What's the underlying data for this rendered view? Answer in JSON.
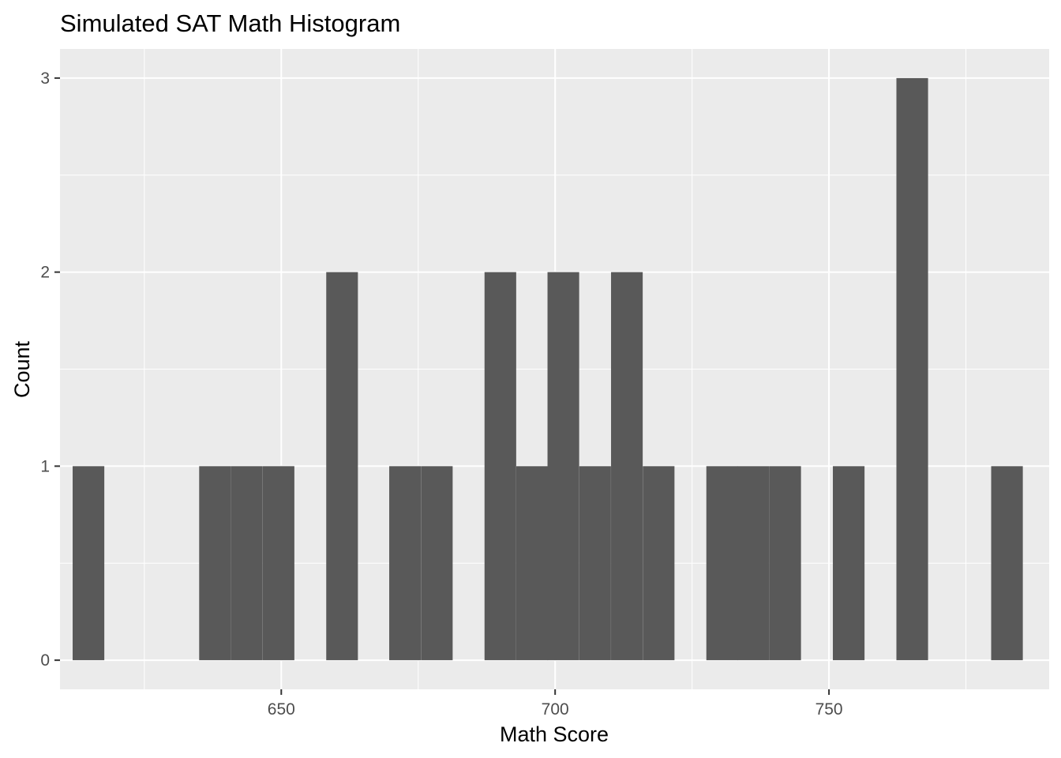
{
  "chart_data": {
    "type": "bar",
    "title": "Simulated SAT Math Histogram",
    "xlabel": "Math Score",
    "ylabel": "Count",
    "x_ticks": [
      650,
      700,
      750
    ],
    "y_ticks": [
      0,
      1,
      2,
      3
    ],
    "xlim": [
      609.6,
      790.2
    ],
    "ylim": [
      -0.15,
      3.15
    ],
    "bin_width": 5.78,
    "grid": true,
    "legend": "none",
    "bins": [
      {
        "center": 614.8,
        "count": 1
      },
      {
        "center": 620.6,
        "count": 0
      },
      {
        "center": 626.4,
        "count": 0
      },
      {
        "center": 632.1,
        "count": 0
      },
      {
        "center": 637.9,
        "count": 1
      },
      {
        "center": 643.7,
        "count": 1
      },
      {
        "center": 649.5,
        "count": 1
      },
      {
        "center": 655.3,
        "count": 0
      },
      {
        "center": 661.1,
        "count": 2
      },
      {
        "center": 666.8,
        "count": 0
      },
      {
        "center": 672.6,
        "count": 1
      },
      {
        "center": 678.4,
        "count": 1
      },
      {
        "center": 684.2,
        "count": 0
      },
      {
        "center": 690.0,
        "count": 2
      },
      {
        "center": 695.8,
        "count": 1
      },
      {
        "center": 701.5,
        "count": 2
      },
      {
        "center": 707.3,
        "count": 1
      },
      {
        "center": 713.1,
        "count": 2
      },
      {
        "center": 718.9,
        "count": 1
      },
      {
        "center": 724.7,
        "count": 0
      },
      {
        "center": 730.5,
        "count": 1
      },
      {
        "center": 736.2,
        "count": 1
      },
      {
        "center": 742.0,
        "count": 1
      },
      {
        "center": 747.8,
        "count": 0
      },
      {
        "center": 753.6,
        "count": 1
      },
      {
        "center": 759.4,
        "count": 0
      },
      {
        "center": 765.2,
        "count": 3
      },
      {
        "center": 770.9,
        "count": 0
      },
      {
        "center": 776.7,
        "count": 0
      },
      {
        "center": 782.5,
        "count": 1
      }
    ]
  },
  "colors": {
    "panel": "#ebebeb",
    "grid": "#ffffff",
    "bar": "#595959",
    "tick_text": "#4d4d4d",
    "tick_mark": "#333333"
  }
}
